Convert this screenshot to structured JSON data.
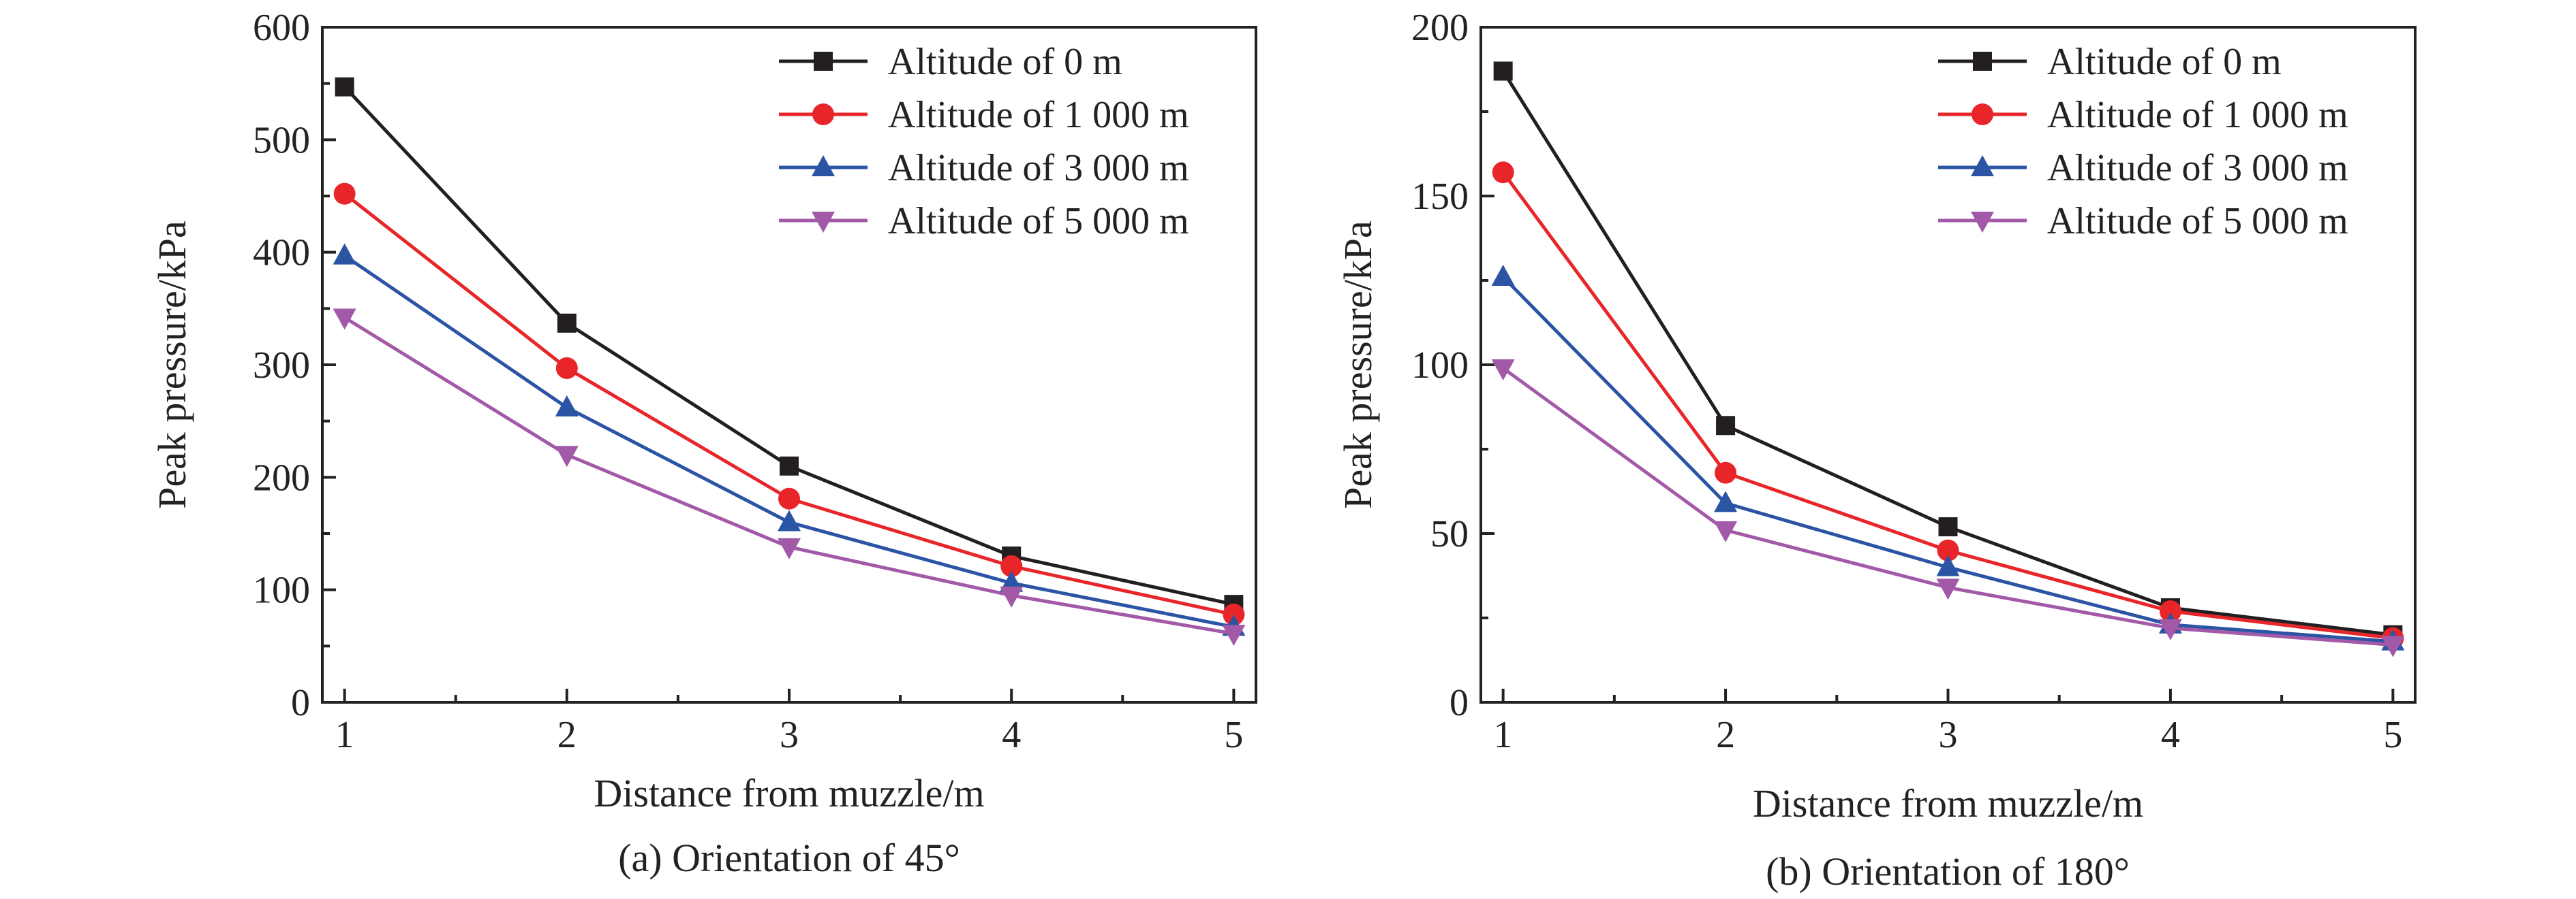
{
  "chart_data": [
    {
      "type": "line",
      "caption": "(a) Orientation of 45°",
      "xlabel": "Distance from muzzle/m",
      "ylabel": "Peak pressure/kPa",
      "x": [
        1,
        2,
        3,
        4,
        5
      ],
      "xlim": [
        0.9,
        5.1
      ],
      "ylim": [
        0,
        600
      ],
      "yticks": [
        0,
        100,
        200,
        300,
        400,
        500,
        600
      ],
      "xticks": [
        1,
        2,
        3,
        4,
        5
      ],
      "legend_position": "top-right",
      "series": [
        {
          "name": "Altitude of 0 m",
          "color": "#231f20",
          "marker": "square",
          "values": [
            547,
            337,
            210,
            130,
            87
          ]
        },
        {
          "name": "Altitude of 1 000 m",
          "color": "#e8262a",
          "marker": "circle",
          "values": [
            452,
            297,
            181,
            121,
            78
          ]
        },
        {
          "name": "Altitude of 3 000 m",
          "color": "#2b54a5",
          "marker": "triangle-up",
          "values": [
            397,
            262,
            160,
            106,
            67
          ]
        },
        {
          "name": "Altitude of 5 000 m",
          "color": "#a259a8",
          "marker": "triangle-down",
          "values": [
            342,
            220,
            138,
            95,
            61
          ]
        }
      ]
    },
    {
      "type": "line",
      "caption": "(b) Orientation of 180°",
      "xlabel": "Distance from muzzle/m",
      "ylabel": "Peak pressure/kPa",
      "x": [
        1,
        2,
        3,
        4,
        5
      ],
      "xlim": [
        0.9,
        5.1
      ],
      "ylim": [
        0,
        200
      ],
      "yticks": [
        0,
        50,
        100,
        150,
        200
      ],
      "xticks": [
        1,
        2,
        3,
        4,
        5
      ],
      "legend_position": "top-right",
      "series": [
        {
          "name": "Altitude of 0 m",
          "color": "#231f20",
          "marker": "square",
          "values": [
            187,
            82,
            52,
            28,
            20
          ]
        },
        {
          "name": "Altitude of 1 000 m",
          "color": "#e8262a",
          "marker": "circle",
          "values": [
            157,
            68,
            45,
            27,
            19
          ]
        },
        {
          "name": "Altitude of 3 000 m",
          "color": "#2b54a5",
          "marker": "triangle-up",
          "values": [
            126,
            59,
            40,
            23,
            18
          ]
        },
        {
          "name": "Altitude of 5 000 m",
          "color": "#a259a8",
          "marker": "triangle-down",
          "values": [
            99,
            51,
            34,
            22,
            17
          ]
        }
      ]
    }
  ]
}
